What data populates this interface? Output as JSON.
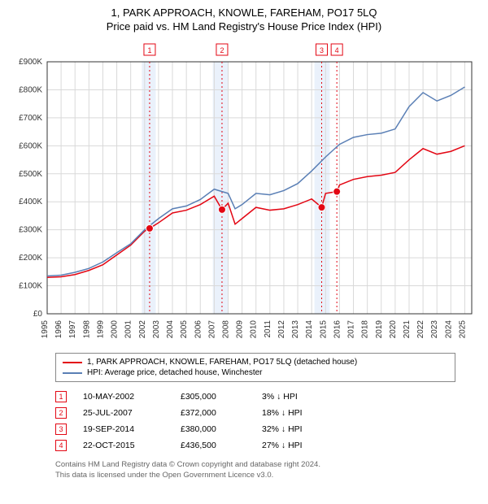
{
  "title": "1, PARK APPROACH, KNOWLE, FAREHAM, PO17 5LQ",
  "subtitle": "Price paid vs. HM Land Registry's House Price Index (HPI)",
  "chart": {
    "type": "line",
    "background_color": "#ffffff",
    "grid_color": "#d9d9d9",
    "axis_color": "#333333",
    "xlim": [
      1995,
      2025.5
    ],
    "ylim": [
      0,
      900000
    ],
    "ytick_step": 100000,
    "yticks": [
      "£0",
      "£100K",
      "£200K",
      "£300K",
      "£400K",
      "£500K",
      "£600K",
      "£700K",
      "£800K",
      "£900K"
    ],
    "xticks": [
      1995,
      1996,
      1997,
      1998,
      1999,
      2000,
      2001,
      2002,
      2003,
      2004,
      2005,
      2006,
      2007,
      2008,
      2009,
      2010,
      2011,
      2012,
      2013,
      2014,
      2015,
      2016,
      2017,
      2018,
      2019,
      2020,
      2021,
      2022,
      2023,
      2024,
      2025
    ],
    "label_fontsize": 10,
    "highlight_bands": [
      {
        "from": 2001.8,
        "to": 2002.8,
        "color": "#eaf1fb"
      },
      {
        "from": 2006.9,
        "to": 2008.0,
        "color": "#eaf1fb"
      },
      {
        "from": 2014.2,
        "to": 2015.3,
        "color": "#eaf1fb"
      }
    ],
    "vlines": [
      {
        "x": 2002.36,
        "color": "#e30613"
      },
      {
        "x": 2007.56,
        "color": "#e30613"
      },
      {
        "x": 2014.72,
        "color": "#e30613"
      },
      {
        "x": 2015.81,
        "color": "#e30613"
      }
    ],
    "series": [
      {
        "name": "1, PARK APPROACH, KNOWLE, FAREHAM, PO17 5LQ (detached house)",
        "color": "#e30613",
        "line_width": 1.5,
        "points": [
          [
            1995,
            130000
          ],
          [
            1996,
            132000
          ],
          [
            1997,
            140000
          ],
          [
            1998,
            155000
          ],
          [
            1999,
            175000
          ],
          [
            2000,
            210000
          ],
          [
            2001,
            245000
          ],
          [
            2002,
            295000
          ],
          [
            2002.36,
            305000
          ],
          [
            2003,
            325000
          ],
          [
            2004,
            360000
          ],
          [
            2005,
            370000
          ],
          [
            2006,
            390000
          ],
          [
            2007,
            420000
          ],
          [
            2007.56,
            372000
          ],
          [
            2008,
            395000
          ],
          [
            2008.5,
            320000
          ],
          [
            2009,
            340000
          ],
          [
            2010,
            380000
          ],
          [
            2011,
            370000
          ],
          [
            2012,
            375000
          ],
          [
            2013,
            390000
          ],
          [
            2014,
            410000
          ],
          [
            2014.72,
            380000
          ],
          [
            2015,
            430000
          ],
          [
            2015.81,
            436500
          ],
          [
            2016,
            460000
          ],
          [
            2017,
            480000
          ],
          [
            2018,
            490000
          ],
          [
            2019,
            495000
          ],
          [
            2020,
            505000
          ],
          [
            2021,
            550000
          ],
          [
            2022,
            590000
          ],
          [
            2023,
            570000
          ],
          [
            2024,
            580000
          ],
          [
            2025,
            600000
          ]
        ]
      },
      {
        "name": "HPI: Average price, detached house, Winchester",
        "color": "#5a7fb5",
        "line_width": 1.5,
        "points": [
          [
            1995,
            135000
          ],
          [
            1996,
            138000
          ],
          [
            1997,
            148000
          ],
          [
            1998,
            162000
          ],
          [
            1999,
            185000
          ],
          [
            2000,
            218000
          ],
          [
            2001,
            250000
          ],
          [
            2002,
            300000
          ],
          [
            2003,
            340000
          ],
          [
            2004,
            375000
          ],
          [
            2005,
            385000
          ],
          [
            2006,
            408000
          ],
          [
            2007,
            445000
          ],
          [
            2008,
            430000
          ],
          [
            2008.5,
            375000
          ],
          [
            2009,
            390000
          ],
          [
            2010,
            430000
          ],
          [
            2011,
            425000
          ],
          [
            2012,
            440000
          ],
          [
            2013,
            465000
          ],
          [
            2014,
            510000
          ],
          [
            2015,
            560000
          ],
          [
            2016,
            605000
          ],
          [
            2017,
            630000
          ],
          [
            2018,
            640000
          ],
          [
            2019,
            645000
          ],
          [
            2020,
            660000
          ],
          [
            2021,
            740000
          ],
          [
            2022,
            790000
          ],
          [
            2023,
            760000
          ],
          [
            2024,
            780000
          ],
          [
            2025,
            810000
          ]
        ]
      }
    ],
    "markers": [
      {
        "label": "1",
        "x": 2002.36,
        "y": 305000,
        "color": "#e30613"
      },
      {
        "label": "2",
        "x": 2007.56,
        "y": 372000,
        "color": "#e30613"
      },
      {
        "label": "3",
        "x": 2014.72,
        "y": 380000,
        "color": "#e30613"
      },
      {
        "label": "4",
        "x": 2015.81,
        "y": 436500,
        "color": "#e30613"
      }
    ],
    "marker_badges_top": [
      {
        "label": "1",
        "x": 2002.36,
        "color": "#e30613"
      },
      {
        "label": "2",
        "x": 2007.56,
        "color": "#e30613"
      },
      {
        "label": "3",
        "x": 2014.72,
        "color": "#e30613"
      },
      {
        "label": "4",
        "x": 2015.81,
        "color": "#e30613"
      }
    ]
  },
  "legend": [
    {
      "color": "#e30613",
      "label": "1, PARK APPROACH, KNOWLE, FAREHAM, PO17 5LQ (detached house)"
    },
    {
      "color": "#5a7fb5",
      "label": "HPI: Average price, detached house, Winchester"
    }
  ],
  "transactions": [
    {
      "badge": "1",
      "badge_color": "#e30613",
      "date": "10-MAY-2002",
      "price": "£305,000",
      "delta": "3% ↓ HPI"
    },
    {
      "badge": "2",
      "badge_color": "#e30613",
      "date": "25-JUL-2007",
      "price": "£372,000",
      "delta": "18% ↓ HPI"
    },
    {
      "badge": "3",
      "badge_color": "#e30613",
      "date": "19-SEP-2014",
      "price": "£380,000",
      "delta": "32% ↓ HPI"
    },
    {
      "badge": "4",
      "badge_color": "#e30613",
      "date": "22-OCT-2015",
      "price": "£436,500",
      "delta": "27% ↓ HPI"
    }
  ],
  "attribution_line1": "Contains HM Land Registry data © Crown copyright and database right 2024.",
  "attribution_line2": "This data is licensed under the Open Government Licence v3.0."
}
